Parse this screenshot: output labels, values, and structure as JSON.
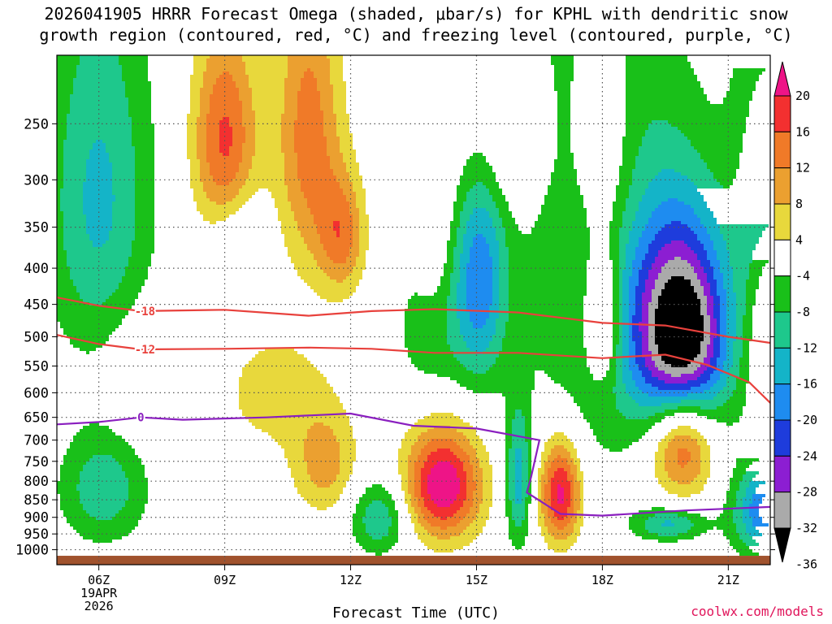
{
  "title": {
    "line1": "2026041905 HRRR Forecast Omega (shaded, μbar/s) for KPHL with dendritic snow",
    "line2": "growth region (contoured, red, °C) and freezing level (contoured, purple, °C)"
  },
  "watermark": "coolwx.com/models",
  "colors": {
    "frame": "#000000",
    "grid": "#555555",
    "ground": "#a0522d",
    "snow_contour": "#e8413c",
    "freezing_contour": "#8a1fbf"
  },
  "chart_data": {
    "type": "heatmap",
    "title": "2026041905 HRRR Forecast Omega (shaded, μbar/s) for KPHL with dendritic snow growth region (contoured, red, °C) and freezing level (contoured, purple, °C)",
    "xlabel": "Forecast Time (UTC)",
    "ylabel": "",
    "x_ticks": [
      {
        "hour": 6,
        "label": "06Z",
        "sub": [
          "19APR",
          "2026"
        ]
      },
      {
        "hour": 9,
        "label": "09Z"
      },
      {
        "hour": 12,
        "label": "12Z"
      },
      {
        "hour": 15,
        "label": "15Z"
      },
      {
        "hour": 18,
        "label": "18Z"
      },
      {
        "hour": 21,
        "label": "21Z"
      }
    ],
    "xlim": [
      5,
      22
    ],
    "y_ticks": [
      250,
      300,
      350,
      400,
      450,
      500,
      550,
      600,
      650,
      700,
      750,
      800,
      850,
      900,
      950,
      1000
    ],
    "ylim_hPa": [
      1050,
      200
    ],
    "grid": true,
    "colorbar": {
      "units": "μbar/s",
      "labels": [
        "20",
        "16",
        "12",
        "8",
        "4",
        "-4",
        "-8",
        "-12",
        "-16",
        "-20",
        "-24",
        "-28",
        "-32",
        "-36"
      ],
      "bins": [
        {
          "lo": 20,
          "hi": 24,
          "color": "#ee1487"
        },
        {
          "lo": 16,
          "hi": 20,
          "color": "#f33030"
        },
        {
          "lo": 12,
          "hi": 16,
          "color": "#f07a28"
        },
        {
          "lo": 8,
          "hi": 12,
          "color": "#eba030"
        },
        {
          "lo": 4,
          "hi": 8,
          "color": "#e8d83c"
        },
        {
          "lo": -4,
          "hi": 4,
          "color": "#ffffff"
        },
        {
          "lo": -8,
          "hi": -4,
          "color": "#19c019"
        },
        {
          "lo": -12,
          "hi": -8,
          "color": "#1ec88c"
        },
        {
          "lo": -16,
          "hi": -12,
          "color": "#14b4c8"
        },
        {
          "lo": -20,
          "hi": -16,
          "color": "#1e8cf0"
        },
        {
          "lo": -24,
          "hi": -20,
          "color": "#1e3cdc"
        },
        {
          "lo": -28,
          "hi": -24,
          "color": "#8c1ed2"
        },
        {
          "lo": -32,
          "hi": -28,
          "color": "#aaaaaa"
        },
        {
          "lo": -36,
          "hi": -32,
          "color": "#000000"
        }
      ]
    },
    "omega_features": [
      {
        "t": 6.0,
        "p": 320,
        "peak": -13,
        "sx": 0.9,
        "sy": 140
      },
      {
        "t": 6.1,
        "p": 820,
        "peak": -11,
        "sx": 0.75,
        "sy": 110
      },
      {
        "t": 9.0,
        "p": 265,
        "peak": 17,
        "sx": 0.55,
        "sy": 65
      },
      {
        "t": 9.3,
        "p": 360,
        "peak": -6,
        "sx": 0.5,
        "sy": 40
      },
      {
        "t": 11.0,
        "p": 260,
        "peak": 14,
        "sx": 0.55,
        "sy": 90
      },
      {
        "t": 11.8,
        "p": 360,
        "peak": 13,
        "sx": 0.4,
        "sy": 50
      },
      {
        "t": 11.4,
        "p": 760,
        "peak": 10,
        "sx": 0.55,
        "sy": 90
      },
      {
        "t": 10.2,
        "p": 600,
        "peak": 6,
        "sx": 1.0,
        "sy": 90
      },
      {
        "t": 7.0,
        "p": 570,
        "peak": 5,
        "sx": 0.6,
        "sy": 80
      },
      {
        "t": 12.7,
        "p": 900,
        "peak": -12,
        "sx": 0.5,
        "sy": 80
      },
      {
        "t": 14.0,
        "p": 490,
        "peak": -7,
        "sx": 0.7,
        "sy": 100
      },
      {
        "t": 14.0,
        "p": 350,
        "peak": 5,
        "sx": 0.3,
        "sy": 80
      },
      {
        "t": 15.1,
        "p": 410,
        "peak": -17,
        "sx": 0.45,
        "sy": 110
      },
      {
        "t": 15.6,
        "p": 270,
        "peak": 6,
        "sx": 0.8,
        "sy": 45
      },
      {
        "t": 14.2,
        "p": 810,
        "peak": 24,
        "sx": 0.65,
        "sy": 105
      },
      {
        "t": 16.0,
        "p": 800,
        "peak": -14,
        "sx": 0.22,
        "sy": 130
      },
      {
        "t": 17.0,
        "p": 830,
        "peak": 22,
        "sx": 0.35,
        "sy": 100
      },
      {
        "t": 18.0,
        "p": 470,
        "peak": 15,
        "sx": 0.3,
        "sy": 70
      },
      {
        "t": 18.0,
        "p": 270,
        "peak": 9,
        "sx": 0.5,
        "sy": 75
      },
      {
        "t": 18.0,
        "p": 380,
        "peak": -10,
        "sx": 1.3,
        "sy": 240
      },
      {
        "t": 19.9,
        "p": 500,
        "peak": -38,
        "sx": 0.8,
        "sy": 120
      },
      {
        "t": 19.9,
        "p": 700,
        "peak": 21,
        "sx": 0.55,
        "sy": 90
      },
      {
        "t": 19.6,
        "p": 920,
        "peak": -13,
        "sx": 0.6,
        "sy": 35
      },
      {
        "t": 22.0,
        "p": 300,
        "peak": -13,
        "sx": 0.6,
        "sy": 100
      },
      {
        "t": 22.0,
        "p": 880,
        "peak": -22,
        "sx": 0.6,
        "sy": 100
      },
      {
        "t": 22.0,
        "p": 470,
        "peak": 7,
        "sx": 0.3,
        "sy": 120
      }
    ],
    "series": [
      {
        "name": "-18",
        "color": "#e8413c",
        "label_at": 7.1,
        "points": [
          [
            5,
            440
          ],
          [
            6,
            452
          ],
          [
            7,
            460
          ],
          [
            9,
            458
          ],
          [
            11,
            467
          ],
          [
            12.5,
            460
          ],
          [
            14,
            457
          ],
          [
            16,
            462
          ],
          [
            18,
            478
          ],
          [
            19.5,
            482
          ],
          [
            21,
            500
          ],
          [
            22,
            510
          ]
        ]
      },
      {
        "name": "-12",
        "color": "#e8413c",
        "label_at": 7.1,
        "points": [
          [
            5,
            497
          ],
          [
            6,
            512
          ],
          [
            7,
            521
          ],
          [
            9,
            520
          ],
          [
            11,
            518
          ],
          [
            12.5,
            520
          ],
          [
            14,
            527
          ],
          [
            16,
            527
          ],
          [
            18,
            536
          ],
          [
            19.5,
            530
          ],
          [
            20.5,
            548
          ],
          [
            21.5,
            580
          ],
          [
            22,
            620
          ]
        ]
      },
      {
        "name": "0",
        "color": "#8a1fbf",
        "label_at": 7.0,
        "points": [
          [
            5,
            665
          ],
          [
            6,
            660
          ],
          [
            7,
            650
          ],
          [
            8,
            655
          ],
          [
            10,
            650
          ],
          [
            12,
            642
          ],
          [
            13.5,
            668
          ],
          [
            15,
            674
          ],
          [
            16.5,
            700
          ],
          [
            16.3,
            790
          ],
          [
            16.2,
            830
          ],
          [
            17,
            890
          ],
          [
            18,
            895
          ],
          [
            20,
            880
          ],
          [
            22,
            870
          ]
        ]
      }
    ],
    "ground_hPa": 1020
  }
}
